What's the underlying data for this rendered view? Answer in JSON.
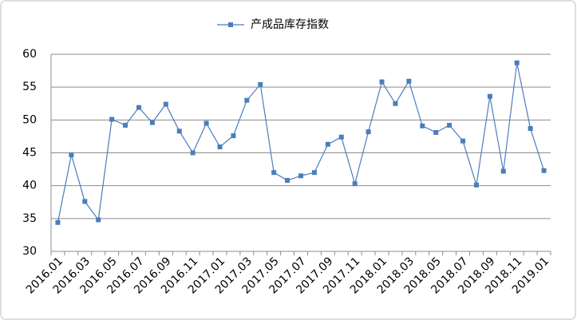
{
  "chart_data": {
    "type": "line",
    "categories": [
      "2016.01",
      null,
      "2016.03",
      null,
      "2016.05",
      null,
      "2016.07",
      null,
      "2016.09",
      null,
      "2016.11",
      null,
      "2017.01",
      null,
      "2017.03",
      null,
      "2017.05",
      null,
      "2017.07",
      null,
      "2017.09",
      null,
      "2017.11",
      null,
      "2018.01",
      null,
      "2018.03",
      null,
      "2018.05",
      null,
      "2018.07",
      null,
      "2018.09",
      null,
      "2018.11",
      null,
      "2019.01"
    ],
    "series": [
      {
        "name": "产成品库存指数",
        "color": "#4a7ebb",
        "values": [
          34.4,
          44.7,
          37.6,
          34.8,
          50.1,
          49.2,
          51.9,
          49.6,
          52.4,
          48.3,
          45.0,
          49.5,
          45.9,
          47.6,
          53.0,
          55.4,
          42.0,
          40.8,
          41.5,
          42.0,
          46.3,
          47.4,
          40.3,
          48.2,
          55.8,
          52.5,
          55.9,
          49.1,
          48.1,
          49.2,
          46.8,
          40.1,
          53.6,
          42.2,
          58.7,
          48.7,
          42.3
        ]
      }
    ],
    "ylim": [
      30,
      60
    ],
    "yticks": [
      30,
      35,
      40,
      45,
      50,
      55,
      60
    ],
    "grid": true,
    "legend": "top"
  }
}
